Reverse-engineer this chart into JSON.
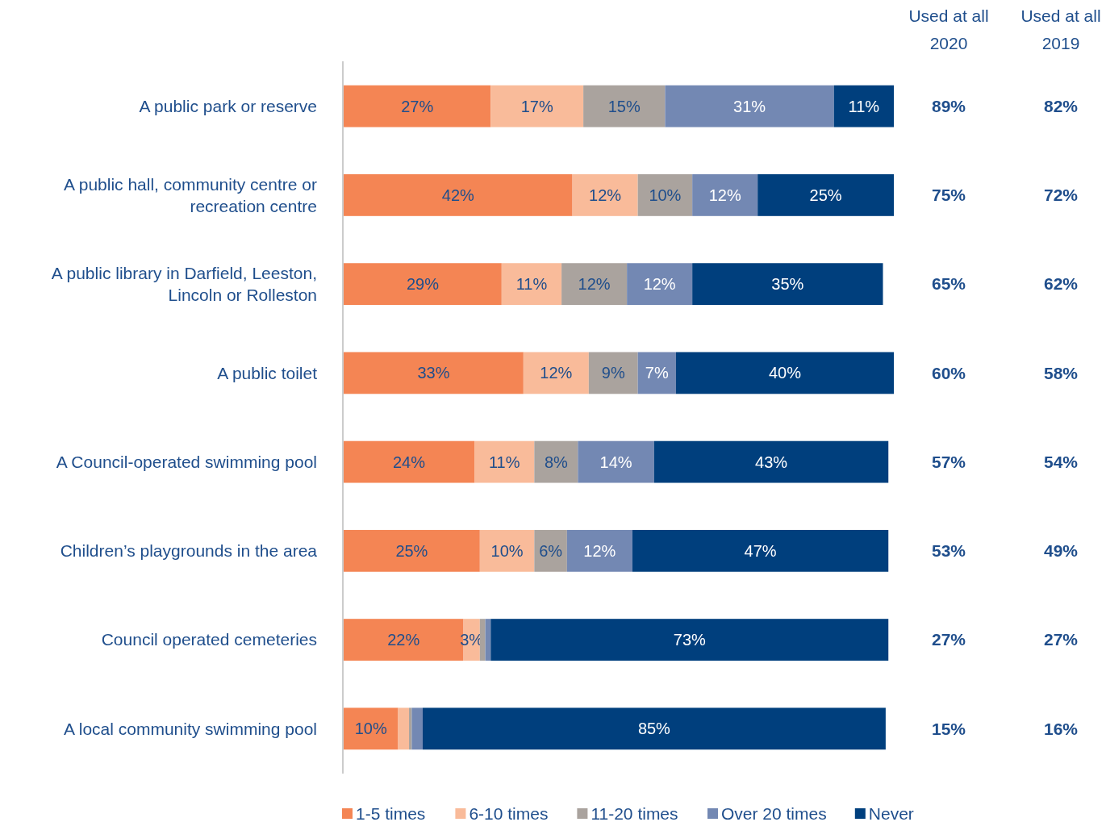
{
  "chart_data": [
    {
      "type": "bar",
      "orientation": "horizontal",
      "stacked": true,
      "xlim": [
        0,
        101
      ],
      "legend": "bottom",
      "categories": [
        "A public park or reserve",
        "A public hall, community centre or recreation centre",
        "A public library in Darfield, Leeston, Lincoln or Rolleston",
        "A public toilet",
        "A Council-operated swimming pool",
        "Children’s playgrounds in the area",
        "Council operated cemeteries",
        "A local community swimming pool"
      ],
      "series": [
        {
          "name": "1-5 times",
          "color": "#f48554",
          "values": [
            27,
            42,
            29,
            33,
            24,
            25,
            22,
            10
          ],
          "value_labels": [
            "27%",
            "42%",
            "29%",
            "33%",
            "24%",
            "25%",
            "22%",
            "10%"
          ]
        },
        {
          "name": "6-10 times",
          "color": "#f9bb9a",
          "values": [
            17,
            12,
            11,
            12,
            11,
            10,
            3,
            2
          ],
          "value_labels": [
            "17%",
            "12%",
            "11%",
            "12%",
            "11%",
            "10%",
            "3%",
            null
          ]
        },
        {
          "name": "11-20 times",
          "color": "#aaa39e",
          "values": [
            15,
            10,
            12,
            9,
            8,
            6,
            1,
            0.5
          ],
          "value_labels": [
            "15%",
            "10%",
            "12%",
            "9%",
            "8%",
            "6%",
            null,
            null
          ]
        },
        {
          "name": "Over 20 times",
          "color": "#7388b3",
          "values": [
            31,
            12,
            12,
            7,
            14,
            12,
            1,
            2
          ],
          "value_labels": [
            "31%",
            "12%",
            "12%",
            "7%",
            "14%",
            "12%",
            null,
            null
          ]
        },
        {
          "name": "Never",
          "color": "#003f7d",
          "values": [
            11,
            25,
            35,
            40,
            43,
            47,
            73,
            85
          ],
          "value_labels": [
            "11%",
            "25%",
            "35%",
            "40%",
            "43%",
            "47%",
            "73%",
            "85%"
          ]
        }
      ]
    },
    {
      "type": "other",
      "categories": [
        "Used at all 2020",
        "Used at all 2019"
      ],
      "annotations": [
        "89%",
        "82%",
        "75%",
        "72%",
        "65%",
        "62%",
        "60%",
        "58%",
        "57%",
        "54%",
        "53%",
        "49%",
        "27%",
        "27%",
        "15%",
        "16%"
      ]
    }
  ]
}
